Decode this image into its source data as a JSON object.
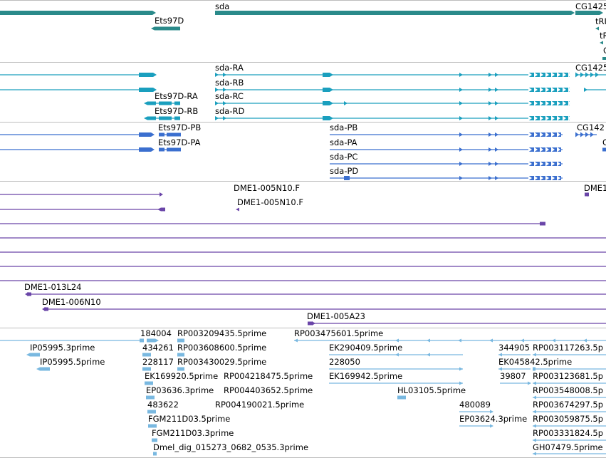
{
  "colors": {
    "gene": "#2a8a8a",
    "transcript": "#1a9fbe",
    "cds": "#3b6fcf",
    "clone": "#6a45a8",
    "est": "#79b8e0",
    "separator": "#bdbdbd"
  },
  "tracks": {
    "genes": {
      "labels": [
        {
          "key": "g1",
          "text": "sda"
        },
        {
          "key": "g2",
          "text": "Ets97D"
        },
        {
          "key": "g3",
          "text": "CG1425"
        },
        {
          "key": "g4",
          "text": "tRI"
        },
        {
          "key": "g5",
          "text": "tR"
        },
        {
          "key": "g6",
          "text": "C"
        }
      ]
    },
    "transcripts": {
      "labels": [
        {
          "key": "t1",
          "text": "sda-RA"
        },
        {
          "key": "t2",
          "text": "sda-RB"
        },
        {
          "key": "t3",
          "text": "sda-RC"
        },
        {
          "key": "t4",
          "text": "sda-RD"
        },
        {
          "key": "t5",
          "text": "Ets97D-RA"
        },
        {
          "key": "t6",
          "text": "Ets97D-RB"
        },
        {
          "key": "t7",
          "text": "CG1425"
        }
      ]
    },
    "proteins": {
      "labels": [
        {
          "key": "p1",
          "text": "Ets97D-PB"
        },
        {
          "key": "p2",
          "text": "Ets97D-PA"
        },
        {
          "key": "p3",
          "text": "sda-PB"
        },
        {
          "key": "p4",
          "text": "sda-PA"
        },
        {
          "key": "p5",
          "text": "sda-PC"
        },
        {
          "key": "p6",
          "text": "sda-PD"
        },
        {
          "key": "p7",
          "text": "CG142"
        },
        {
          "key": "p8",
          "text": "C"
        }
      ]
    },
    "clones": {
      "labels": [
        {
          "key": "c1",
          "text": "DME1-005N10.F"
        },
        {
          "key": "c2",
          "text": "DME1-005N10.F"
        },
        {
          "key": "c3",
          "text": "DME1"
        },
        {
          "key": "c4",
          "text": "DME1-013L24"
        },
        {
          "key": "c5",
          "text": "DME1-006N10"
        },
        {
          "key": "c6",
          "text": "DME1-005A23"
        }
      ]
    },
    "ests": {
      "labels": [
        {
          "key": "e1",
          "text": "184004"
        },
        {
          "key": "e2",
          "text": "RP003209435.5prime"
        },
        {
          "key": "e3",
          "text": "RP003475601.5prime"
        },
        {
          "key": "e4",
          "text": "IP05995.3prime"
        },
        {
          "key": "e5",
          "text": "434261"
        },
        {
          "key": "e6",
          "text": "RP003608600.5prime"
        },
        {
          "key": "e7",
          "text": "EK290409.5prime"
        },
        {
          "key": "e8",
          "text": "344905"
        },
        {
          "key": "e9",
          "text": "RP003117263.5p"
        },
        {
          "key": "e10",
          "text": "IP05995.5prime"
        },
        {
          "key": "e11",
          "text": "228117"
        },
        {
          "key": "e12",
          "text": "RP003430029.5prime"
        },
        {
          "key": "e13",
          "text": "228050"
        },
        {
          "key": "e14",
          "text": "EK045842.5prime"
        },
        {
          "key": "e15",
          "text": "EK169920.5prime"
        },
        {
          "key": "e16",
          "text": "RP004218475.5prime"
        },
        {
          "key": "e17",
          "text": "EK169942.5prime"
        },
        {
          "key": "e18",
          "text": "39807"
        },
        {
          "key": "e19",
          "text": "RP003123681.5p"
        },
        {
          "key": "e20",
          "text": "EP03636.3prime"
        },
        {
          "key": "e21",
          "text": "RP004403652.5prime"
        },
        {
          "key": "e22",
          "text": "HL03105.5prime"
        },
        {
          "key": "e23",
          "text": "RP003548008.5p"
        },
        {
          "key": "e24",
          "text": "483622"
        },
        {
          "key": "e25",
          "text": "RP004190021.5prime"
        },
        {
          "key": "e26",
          "text": "480089"
        },
        {
          "key": "e27",
          "text": "RP003674297.5p"
        },
        {
          "key": "e28",
          "text": "FGM211D03.5prime"
        },
        {
          "key": "e29",
          "text": "EP03624.3prime"
        },
        {
          "key": "e30",
          "text": "RP003059875.5p"
        },
        {
          "key": "e31",
          "text": "FGM211D03.3prime"
        },
        {
          "key": "e32",
          "text": "RP003331824.5p"
        },
        {
          "key": "e33",
          "text": "Dmel_dig_015273_0682_0535.3prime"
        },
        {
          "key": "e34",
          "text": "GH07479.5prime"
        }
      ]
    }
  }
}
